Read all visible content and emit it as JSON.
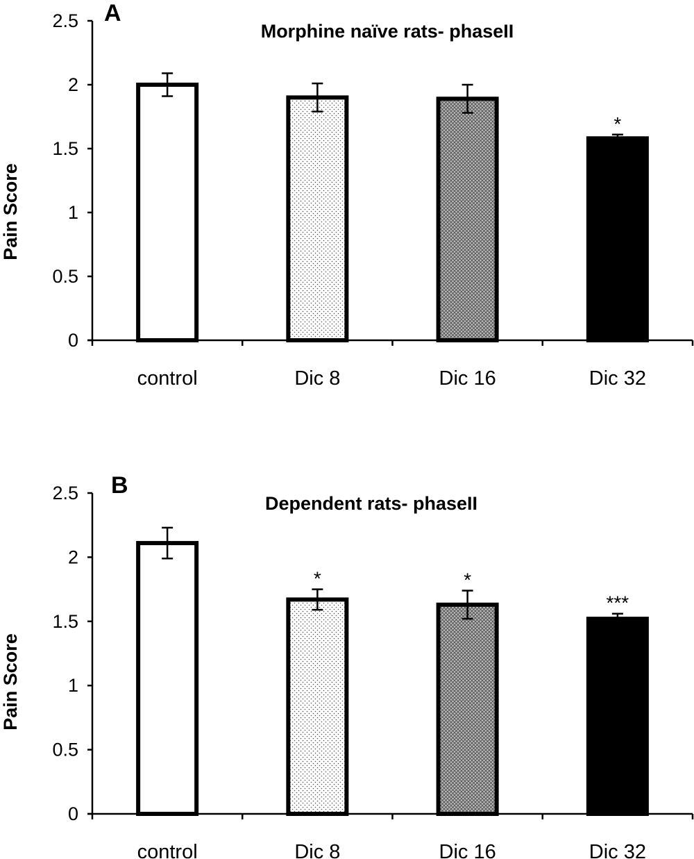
{
  "chart_data": [
    {
      "type": "bar",
      "panel_label": "A",
      "title": "Morphine naïve rats- phaseII",
      "ylabel": "Pain Score",
      "xlabel": "",
      "categories": [
        "control",
        "Dic 8",
        "Dic 16",
        "Dic 32"
      ],
      "values": [
        2.0,
        1.9,
        1.89,
        1.58
      ],
      "errors": [
        0.09,
        0.11,
        0.11,
        0.03
      ],
      "significance": [
        "",
        "",
        "",
        "*"
      ],
      "fills": [
        "white",
        "fine-dots",
        "crosshatch",
        "black"
      ],
      "ylim": [
        0,
        2.5
      ],
      "yticks": [
        "0",
        "0.5",
        "1",
        "1.5",
        "2",
        "2.5"
      ]
    },
    {
      "type": "bar",
      "panel_label": "B",
      "title": "Dependent rats- phaseII",
      "ylabel": "Pain Score",
      "xlabel": "",
      "categories": [
        "control",
        "Dic 8",
        "Dic 16",
        "Dic 32"
      ],
      "values": [
        2.11,
        1.67,
        1.63,
        1.52
      ],
      "errors": [
        0.12,
        0.08,
        0.11,
        0.04
      ],
      "significance": [
        "",
        "*",
        "*",
        "***"
      ],
      "fills": [
        "white",
        "fine-dots",
        "crosshatch",
        "black"
      ],
      "ylim": [
        0,
        2.5
      ],
      "yticks": [
        "0",
        "0.5",
        "1",
        "1.5",
        "2",
        "2.5"
      ]
    }
  ]
}
